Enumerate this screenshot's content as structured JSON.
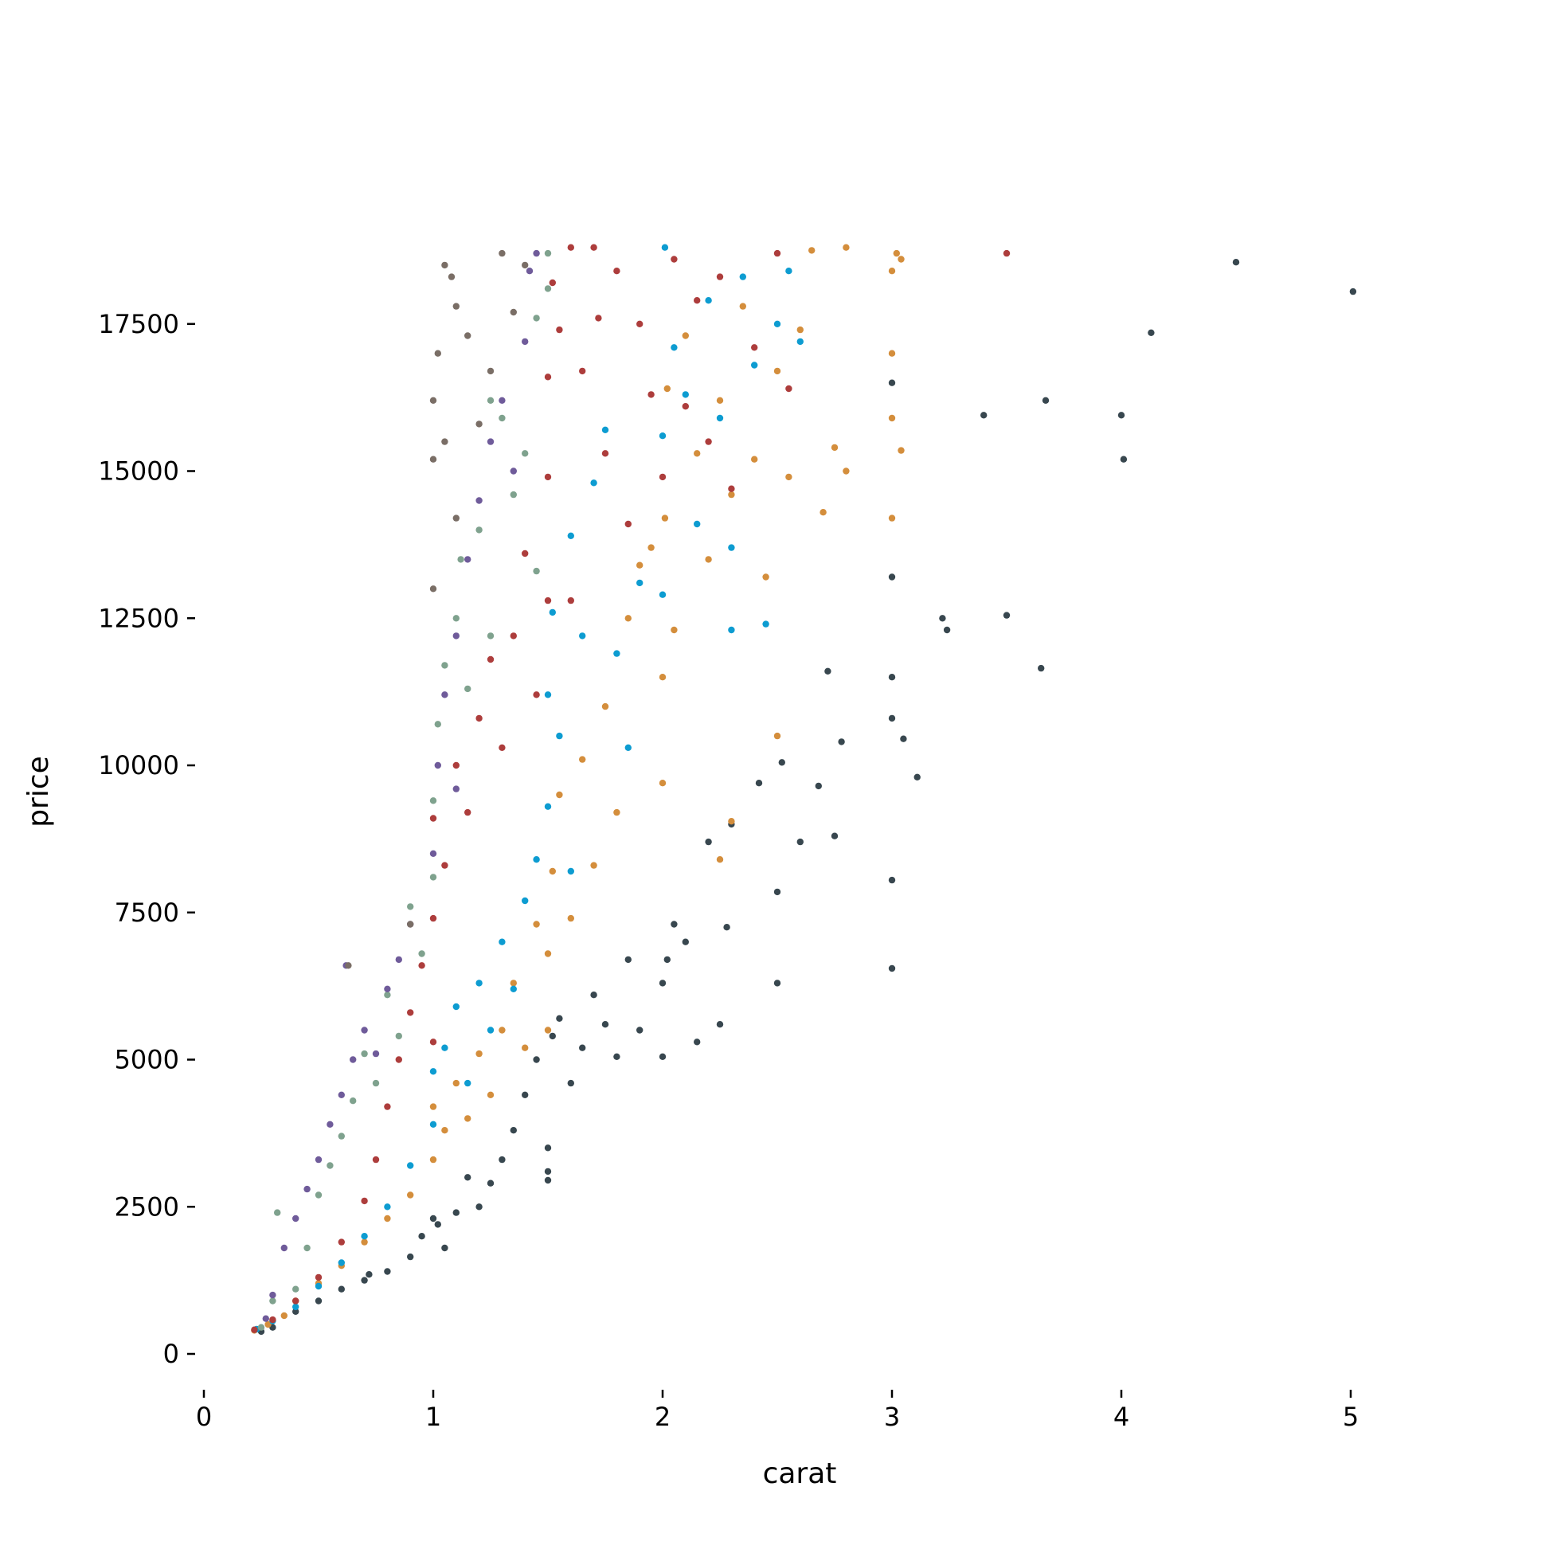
{
  "chart_data": {
    "type": "scatter",
    "title": "",
    "xlabel": "carat",
    "ylabel": "price",
    "xlim": [
      0,
      5.5
    ],
    "ylim": [
      -500,
      19500
    ],
    "xticks": [
      0,
      1,
      2,
      3,
      4,
      5
    ],
    "xtick_labels": [
      "0",
      "1",
      "2",
      "3",
      "4",
      "5"
    ],
    "yticks": [
      0,
      2500,
      5000,
      7500,
      10000,
      12500,
      15000,
      17500
    ],
    "ytick_labels": [
      "0",
      "2500",
      "5000",
      "7500",
      "10000",
      "12500",
      "15000",
      "17500"
    ],
    "grid": false,
    "legend": "none",
    "series": [
      {
        "color": "#38474f",
        "points": [
          [
            0.25,
            380
          ],
          [
            0.3,
            450
          ],
          [
            0.4,
            720
          ],
          [
            0.5,
            900
          ],
          [
            0.6,
            1100
          ],
          [
            0.7,
            1250
          ],
          [
            0.72,
            1350
          ],
          [
            0.8,
            1400
          ],
          [
            0.9,
            1650
          ],
          [
            0.95,
            2000
          ],
          [
            1.0,
            2300
          ],
          [
            1.02,
            2200
          ],
          [
            1.05,
            1800
          ],
          [
            1.1,
            2400
          ],
          [
            1.15,
            3000
          ],
          [
            1.2,
            2500
          ],
          [
            1.25,
            2900
          ],
          [
            1.3,
            3300
          ],
          [
            1.35,
            3800
          ],
          [
            1.4,
            4400
          ],
          [
            1.45,
            5000
          ],
          [
            1.5,
            3100
          ],
          [
            1.5,
            3500
          ],
          [
            1.5,
            2950
          ],
          [
            1.52,
            5400
          ],
          [
            1.55,
            5700
          ],
          [
            1.6,
            4600
          ],
          [
            1.65,
            5200
          ],
          [
            1.7,
            6100
          ],
          [
            1.75,
            5600
          ],
          [
            1.8,
            5050
          ],
          [
            1.85,
            6700
          ],
          [
            1.9,
            5500
          ],
          [
            2.0,
            5050
          ],
          [
            2.0,
            6300
          ],
          [
            2.02,
            6700
          ],
          [
            2.05,
            7300
          ],
          [
            2.1,
            7000
          ],
          [
            2.15,
            5300
          ],
          [
            2.2,
            8700
          ],
          [
            2.25,
            5600
          ],
          [
            2.28,
            7250
          ],
          [
            2.3,
            9000
          ],
          [
            2.42,
            9700
          ],
          [
            2.5,
            6300
          ],
          [
            2.5,
            7850
          ],
          [
            2.52,
            10050
          ],
          [
            2.6,
            8700
          ],
          [
            2.68,
            9650
          ],
          [
            2.72,
            11600
          ],
          [
            2.75,
            8800
          ],
          [
            2.78,
            10400
          ],
          [
            3.0,
            6550
          ],
          [
            3.0,
            8050
          ],
          [
            3.0,
            10800
          ],
          [
            3.0,
            11500
          ],
          [
            3.0,
            13200
          ],
          [
            3.0,
            16500
          ],
          [
            3.05,
            10450
          ],
          [
            3.11,
            9800
          ],
          [
            3.22,
            12500
          ],
          [
            3.24,
            12300
          ],
          [
            3.4,
            15950
          ],
          [
            3.5,
            12550
          ],
          [
            3.65,
            11650
          ],
          [
            3.67,
            16200
          ],
          [
            4.0,
            15950
          ],
          [
            4.01,
            15200
          ],
          [
            4.13,
            17350
          ],
          [
            4.5,
            18550
          ],
          [
            5.01,
            18050
          ]
        ]
      },
      {
        "color": "#d48e3c",
        "points": [
          [
            0.22,
            400
          ],
          [
            0.28,
            500
          ],
          [
            0.35,
            650
          ],
          [
            0.4,
            900
          ],
          [
            0.5,
            1200
          ],
          [
            0.6,
            1500
          ],
          [
            0.7,
            1900
          ],
          [
            0.8,
            2300
          ],
          [
            0.9,
            2700
          ],
          [
            1.0,
            3300
          ],
          [
            1.0,
            4200
          ],
          [
            1.05,
            3800
          ],
          [
            1.1,
            4600
          ],
          [
            1.15,
            4000
          ],
          [
            1.2,
            5100
          ],
          [
            1.25,
            4400
          ],
          [
            1.3,
            5500
          ],
          [
            1.35,
            6300
          ],
          [
            1.4,
            5200
          ],
          [
            1.45,
            7300
          ],
          [
            1.5,
            5500
          ],
          [
            1.5,
            6800
          ],
          [
            1.52,
            8200
          ],
          [
            1.55,
            9500
          ],
          [
            1.6,
            7400
          ],
          [
            1.65,
            10100
          ],
          [
            1.7,
            8300
          ],
          [
            1.75,
            11000
          ],
          [
            1.8,
            9200
          ],
          [
            1.85,
            12500
          ],
          [
            1.9,
            13400
          ],
          [
            1.95,
            13700
          ],
          [
            2.0,
            9700
          ],
          [
            2.0,
            11500
          ],
          [
            2.01,
            14200
          ],
          [
            2.02,
            16400
          ],
          [
            2.05,
            12300
          ],
          [
            2.1,
            17300
          ],
          [
            2.15,
            15300
          ],
          [
            2.2,
            13500
          ],
          [
            2.25,
            16200
          ],
          [
            2.3,
            14600
          ],
          [
            2.35,
            17800
          ],
          [
            2.4,
            15200
          ],
          [
            2.45,
            13200
          ],
          [
            2.5,
            16700
          ],
          [
            2.55,
            14900
          ],
          [
            2.6,
            17400
          ],
          [
            2.65,
            18750
          ],
          [
            2.7,
            14300
          ],
          [
            2.75,
            15400
          ],
          [
            2.8,
            18800
          ],
          [
            2.8,
            15000
          ],
          [
            3.0,
            14200
          ],
          [
            3.0,
            15900
          ],
          [
            3.0,
            17000
          ],
          [
            3.0,
            18400
          ],
          [
            3.02,
            18700
          ],
          [
            3.04,
            15350
          ],
          [
            2.3,
            9050
          ],
          [
            2.5,
            10500
          ],
          [
            2.25,
            8400
          ],
          [
            3.04,
            18600
          ]
        ]
      },
      {
        "color": "#0d9cd1",
        "points": [
          [
            0.23,
            420
          ],
          [
            0.3,
            560
          ],
          [
            0.4,
            800
          ],
          [
            0.5,
            1150
          ],
          [
            0.6,
            1550
          ],
          [
            0.7,
            2000
          ],
          [
            0.8,
            2500
          ],
          [
            0.9,
            3200
          ],
          [
            1.0,
            3900
          ],
          [
            1.0,
            4800
          ],
          [
            1.05,
            5200
          ],
          [
            1.1,
            5900
          ],
          [
            1.15,
            4600
          ],
          [
            1.2,
            6300
          ],
          [
            1.25,
            5500
          ],
          [
            1.3,
            7000
          ],
          [
            1.35,
            6200
          ],
          [
            1.4,
            7700
          ],
          [
            1.45,
            8400
          ],
          [
            1.5,
            9300
          ],
          [
            1.5,
            11200
          ],
          [
            1.52,
            12600
          ],
          [
            1.55,
            10500
          ],
          [
            1.6,
            13900
          ],
          [
            1.65,
            12200
          ],
          [
            1.7,
            14800
          ],
          [
            1.75,
            15700
          ],
          [
            1.8,
            11900
          ],
          [
            1.85,
            10300
          ],
          [
            1.9,
            13100
          ],
          [
            2.0,
            12900
          ],
          [
            2.0,
            15600
          ],
          [
            2.01,
            18800
          ],
          [
            2.05,
            17100
          ],
          [
            2.1,
            16300
          ],
          [
            2.15,
            14100
          ],
          [
            2.2,
            17900
          ],
          [
            2.25,
            15900
          ],
          [
            2.3,
            13700
          ],
          [
            2.35,
            18300
          ],
          [
            2.4,
            16800
          ],
          [
            2.45,
            12400
          ],
          [
            2.5,
            17500
          ],
          [
            2.55,
            18400
          ],
          [
            2.6,
            17200
          ],
          [
            2.3,
            12300
          ],
          [
            1.6,
            8200
          ]
        ]
      },
      {
        "color": "#ad3d3c",
        "points": [
          [
            0.22,
            410
          ],
          [
            0.3,
            580
          ],
          [
            0.4,
            900
          ],
          [
            0.5,
            1300
          ],
          [
            0.6,
            1900
          ],
          [
            0.7,
            2600
          ],
          [
            0.75,
            3300
          ],
          [
            0.8,
            4200
          ],
          [
            0.85,
            5000
          ],
          [
            0.9,
            5800
          ],
          [
            0.95,
            6600
          ],
          [
            1.0,
            5300
          ],
          [
            1.0,
            7400
          ],
          [
            1.0,
            9100
          ],
          [
            1.05,
            8300
          ],
          [
            1.1,
            10000
          ],
          [
            1.15,
            9200
          ],
          [
            1.2,
            10800
          ],
          [
            1.25,
            11800
          ],
          [
            1.3,
            10300
          ],
          [
            1.35,
            12200
          ],
          [
            1.4,
            13600
          ],
          [
            1.45,
            11200
          ],
          [
            1.5,
            12800
          ],
          [
            1.5,
            14900
          ],
          [
            1.5,
            16600
          ],
          [
            1.52,
            18200
          ],
          [
            1.55,
            17400
          ],
          [
            1.6,
            18800
          ],
          [
            1.65,
            16700
          ],
          [
            1.7,
            18800
          ],
          [
            1.72,
            17600
          ],
          [
            1.75,
            15300
          ],
          [
            1.8,
            18400
          ],
          [
            1.85,
            14100
          ],
          [
            1.9,
            17500
          ],
          [
            1.95,
            16300
          ],
          [
            2.0,
            14900
          ],
          [
            2.05,
            18600
          ],
          [
            2.1,
            16100
          ],
          [
            2.15,
            17900
          ],
          [
            2.2,
            15500
          ],
          [
            2.25,
            18300
          ],
          [
            2.3,
            14700
          ],
          [
            2.4,
            17100
          ],
          [
            2.5,
            18700
          ],
          [
            2.55,
            16400
          ],
          [
            3.5,
            18700
          ],
          [
            1.6,
            12800
          ]
        ]
      },
      {
        "color": "#7fa28e",
        "points": [
          [
            0.25,
            450
          ],
          [
            0.3,
            900
          ],
          [
            0.32,
            2400
          ],
          [
            0.4,
            1100
          ],
          [
            0.45,
            1800
          ],
          [
            0.5,
            2700
          ],
          [
            0.55,
            3200
          ],
          [
            0.6,
            3700
          ],
          [
            0.65,
            4300
          ],
          [
            0.7,
            5100
          ],
          [
            0.75,
            4600
          ],
          [
            0.8,
            6100
          ],
          [
            0.85,
            5400
          ],
          [
            0.9,
            7600
          ],
          [
            0.95,
            6800
          ],
          [
            1.0,
            8100
          ],
          [
            1.0,
            9400
          ],
          [
            1.02,
            10700
          ],
          [
            1.05,
            11700
          ],
          [
            1.1,
            12500
          ],
          [
            1.12,
            13500
          ],
          [
            1.15,
            11300
          ],
          [
            1.2,
            14000
          ],
          [
            1.25,
            12200
          ],
          [
            1.3,
            15900
          ],
          [
            1.35,
            14600
          ],
          [
            1.4,
            15300
          ],
          [
            1.45,
            17600
          ],
          [
            1.5,
            18100
          ],
          [
            1.5,
            18700
          ],
          [
            1.45,
            13300
          ],
          [
            1.25,
            16200
          ]
        ]
      },
      {
        "color": "#6f5b9a",
        "points": [
          [
            0.27,
            600
          ],
          [
            0.3,
            1000
          ],
          [
            0.35,
            1800
          ],
          [
            0.4,
            2300
          ],
          [
            0.45,
            2800
          ],
          [
            0.5,
            3300
          ],
          [
            0.55,
            3900
          ],
          [
            0.6,
            4400
          ],
          [
            0.65,
            5000
          ],
          [
            0.7,
            5500
          ],
          [
            0.75,
            5100
          ],
          [
            0.8,
            6200
          ],
          [
            0.85,
            6700
          ],
          [
            0.9,
            7300
          ],
          [
            1.0,
            8500
          ],
          [
            1.02,
            10000
          ],
          [
            1.05,
            11200
          ],
          [
            1.1,
            12200
          ],
          [
            1.15,
            13500
          ],
          [
            1.2,
            14500
          ],
          [
            1.25,
            15500
          ],
          [
            1.3,
            16200
          ],
          [
            1.35,
            15000
          ],
          [
            1.4,
            17200
          ],
          [
            1.42,
            18400
          ],
          [
            1.45,
            18700
          ],
          [
            1.1,
            9600
          ],
          [
            0.62,
            6600
          ]
        ]
      },
      {
        "color": "#7a6e66",
        "points": [
          [
            0.63,
            6600
          ],
          [
            0.9,
            7300
          ],
          [
            1.0,
            13000
          ],
          [
            1.0,
            15200
          ],
          [
            1.0,
            16200
          ],
          [
            1.02,
            17000
          ],
          [
            1.05,
            18500
          ],
          [
            1.08,
            18300
          ],
          [
            1.1,
            17800
          ],
          [
            1.15,
            17300
          ],
          [
            1.2,
            15800
          ],
          [
            1.25,
            16700
          ],
          [
            1.3,
            18700
          ],
          [
            1.35,
            17700
          ],
          [
            1.4,
            18500
          ],
          [
            1.05,
            15500
          ],
          [
            1.1,
            14200
          ]
        ]
      }
    ]
  }
}
